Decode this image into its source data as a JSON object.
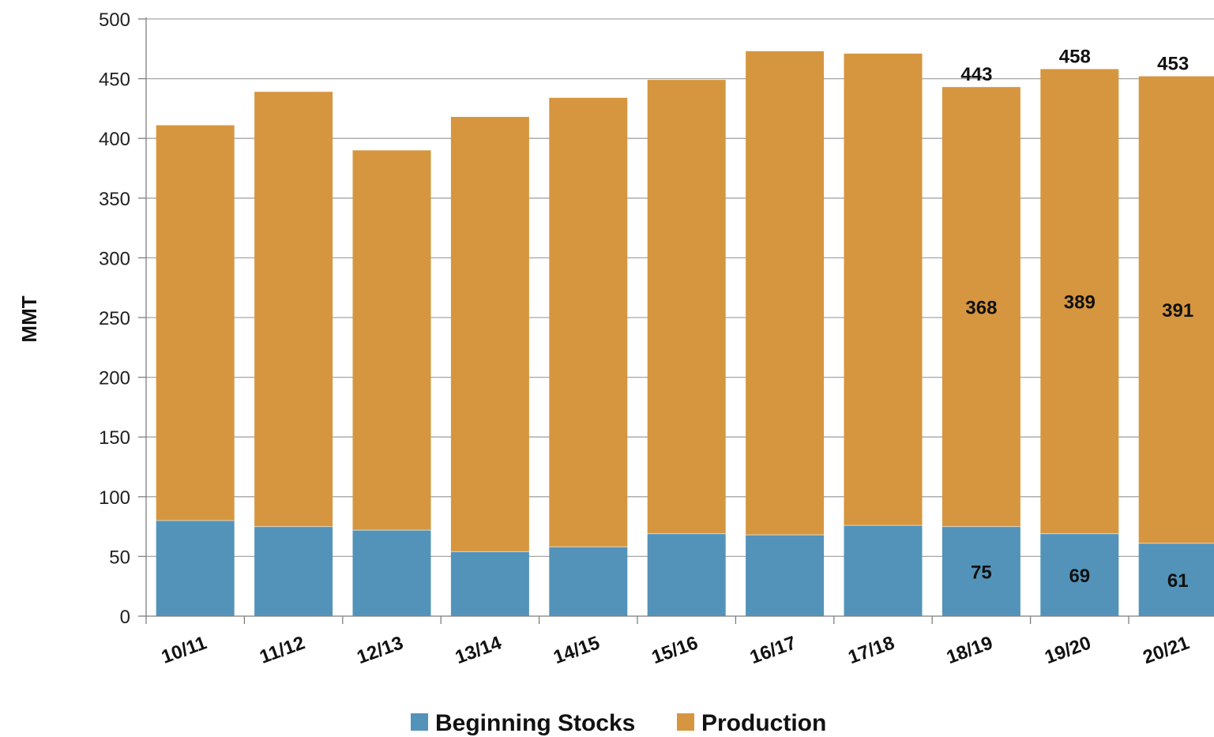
{
  "chart_data": {
    "type": "bar",
    "stacked": true,
    "title": "",
    "xlabel": "",
    "ylabel": "MMT",
    "ylim": [
      0,
      500
    ],
    "yticks": [
      0,
      50,
      100,
      150,
      200,
      250,
      300,
      350,
      400,
      450,
      500
    ],
    "grid": "horizontal",
    "legend_position": "bottom",
    "categories": [
      "10/11",
      "11/12",
      "12/13",
      "13/14",
      "14/15",
      "15/16",
      "16/17",
      "17/18",
      "18/19",
      "19/20",
      "20/21"
    ],
    "series": [
      {
        "name": "Beginning Stocks",
        "color": "#5393b9",
        "values": [
          80,
          75,
          72,
          54,
          58,
          69,
          68,
          76,
          75,
          69,
          61
        ],
        "data_labels": [
          null,
          null,
          null,
          null,
          null,
          null,
          null,
          null,
          "75",
          "69",
          "61"
        ]
      },
      {
        "name": "Production",
        "color": "#d6963f",
        "values": [
          331,
          364,
          318,
          364,
          376,
          380,
          405,
          395,
          368,
          389,
          391
        ],
        "data_labels": [
          null,
          null,
          null,
          null,
          null,
          null,
          null,
          null,
          "368",
          "389",
          "391"
        ]
      }
    ],
    "total_labels": [
      null,
      null,
      null,
      null,
      null,
      null,
      null,
      null,
      "443",
      "458",
      "453"
    ]
  }
}
